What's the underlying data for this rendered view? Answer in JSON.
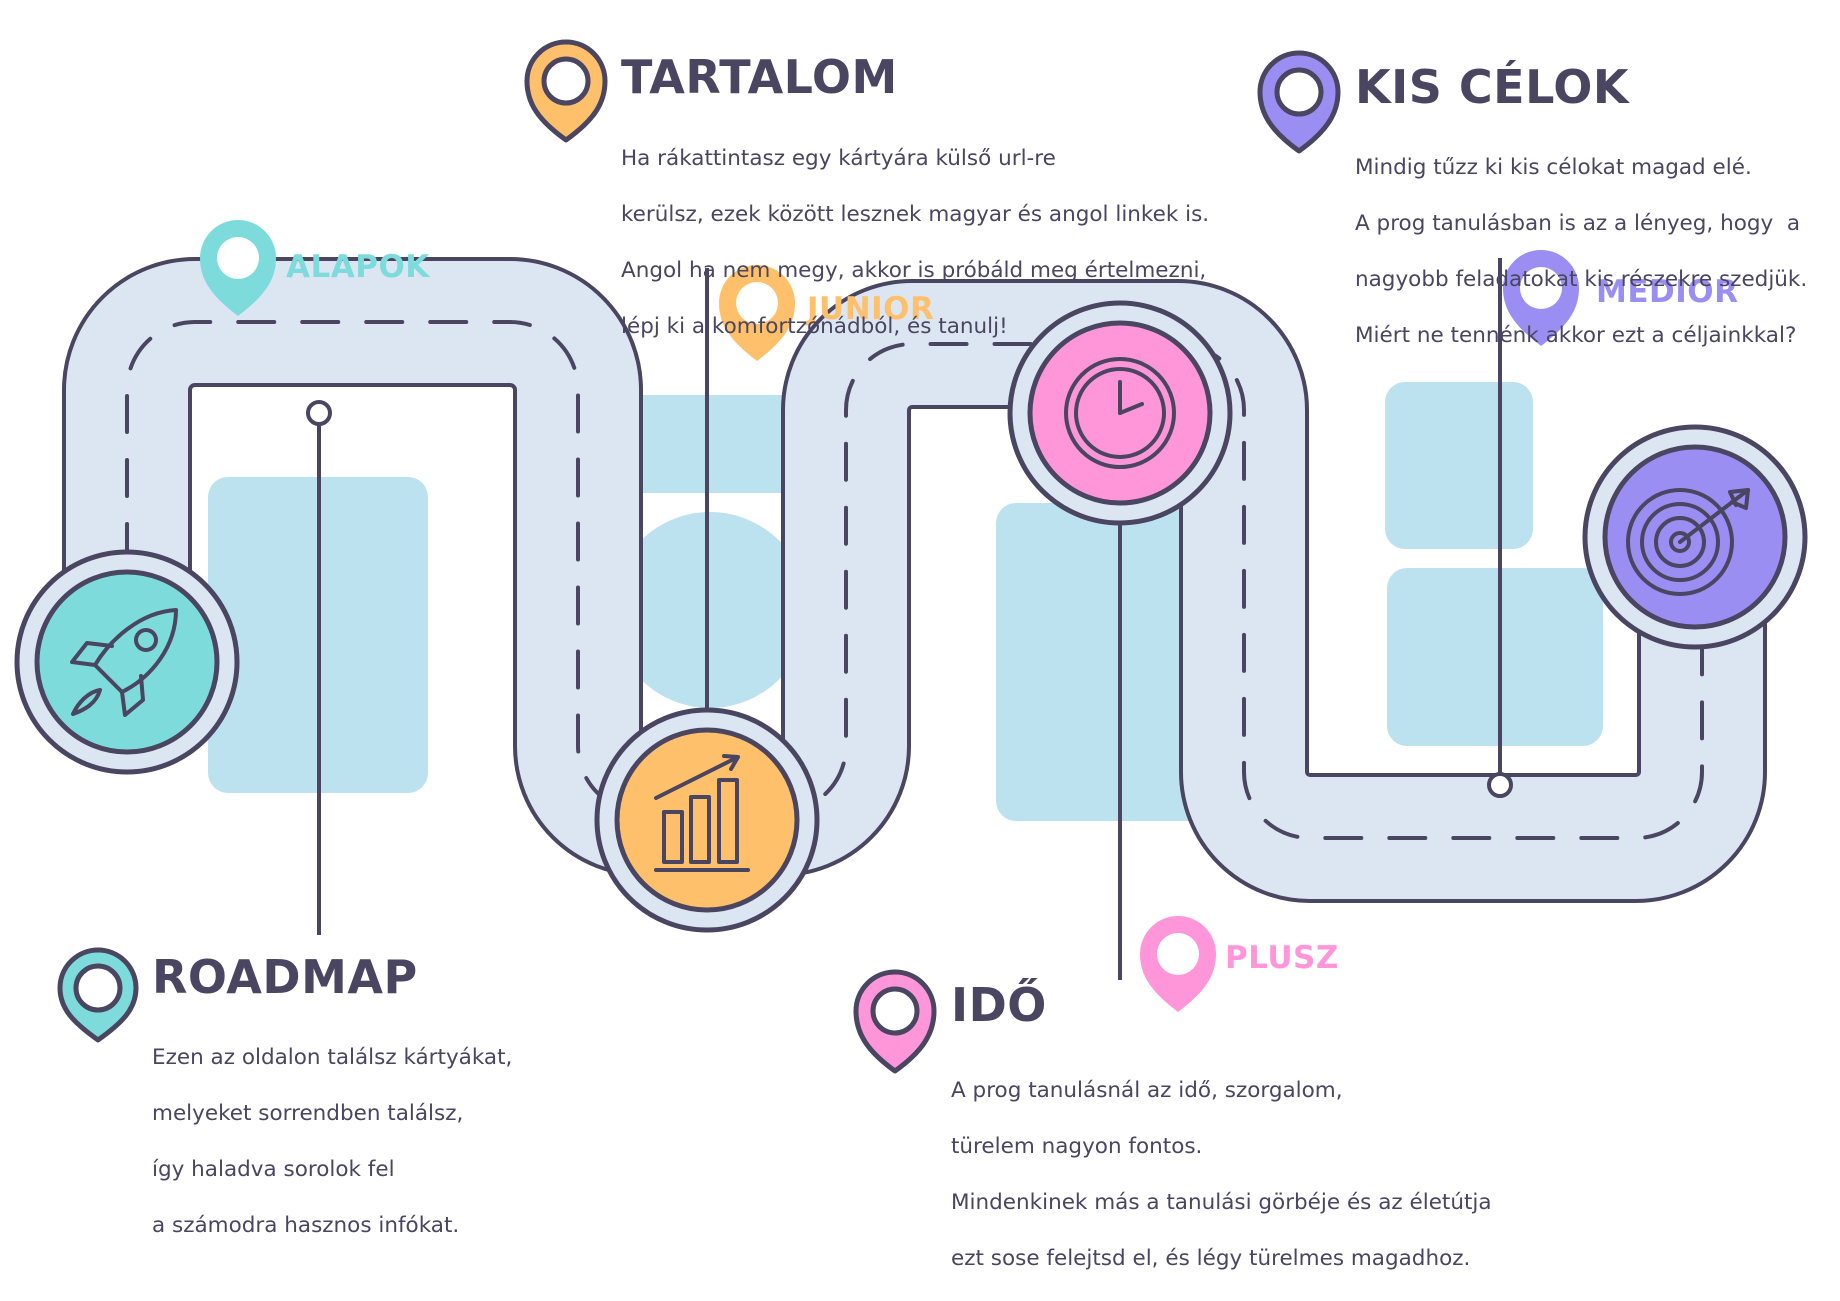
{
  "colors": {
    "outline": "#4a4560",
    "road": "#dce6f2",
    "block": "#bde2ef",
    "teal": "#7ddcdb",
    "orange": "#fec06a",
    "pink": "#ff96d9",
    "purple": "#9b8ef3"
  },
  "stages": {
    "alapok": "ALAPOK",
    "junior": "JUNIOR",
    "medior": "MEDIOR",
    "plusz": "PLUSZ"
  },
  "sections": {
    "roadmap": {
      "title": "ROADMAP",
      "lines": [
        "Ezen az oldalon találsz kártyákat,",
        "melyeket sorrendben találsz,",
        "így haladva sorolok fel",
        "a számodra hasznos infókat."
      ]
    },
    "tartalom": {
      "title": "TARTALOM",
      "lines": [
        "Ha rákattintasz egy kártyára külső url-re",
        "kerülsz, ezek között lesznek magyar és angol linkek is.",
        "Angol ha nem megy, akkor is próbáld meg értelmezni,",
        "lépj ki a komfortzónádból, és tanulj!"
      ]
    },
    "kis_celok": {
      "title": "KIS CÉLOK",
      "lines": [
        "Mindig tűzz ki kis célokat magad elé.",
        "A prog tanulásban is az a lényeg, hogy  a",
        "nagyobb feladatokat kis részekre szedjük.",
        "Miért ne tennénk akkor ezt a céljainkkal?"
      ]
    },
    "ido": {
      "title": "IDŐ",
      "lines": [
        "A prog tanulásnál az idő, szorgalom,",
        "türelem nagyon fontos.",
        "Mindenkinek más a tanulási görbéje és az életútja",
        "ezt sose felejtsd el, és légy türelmes magadhoz."
      ]
    }
  },
  "icons": [
    "rocket-icon",
    "bar-chart-icon",
    "clock-icon",
    "target-icon",
    "map-pin-icon"
  ]
}
